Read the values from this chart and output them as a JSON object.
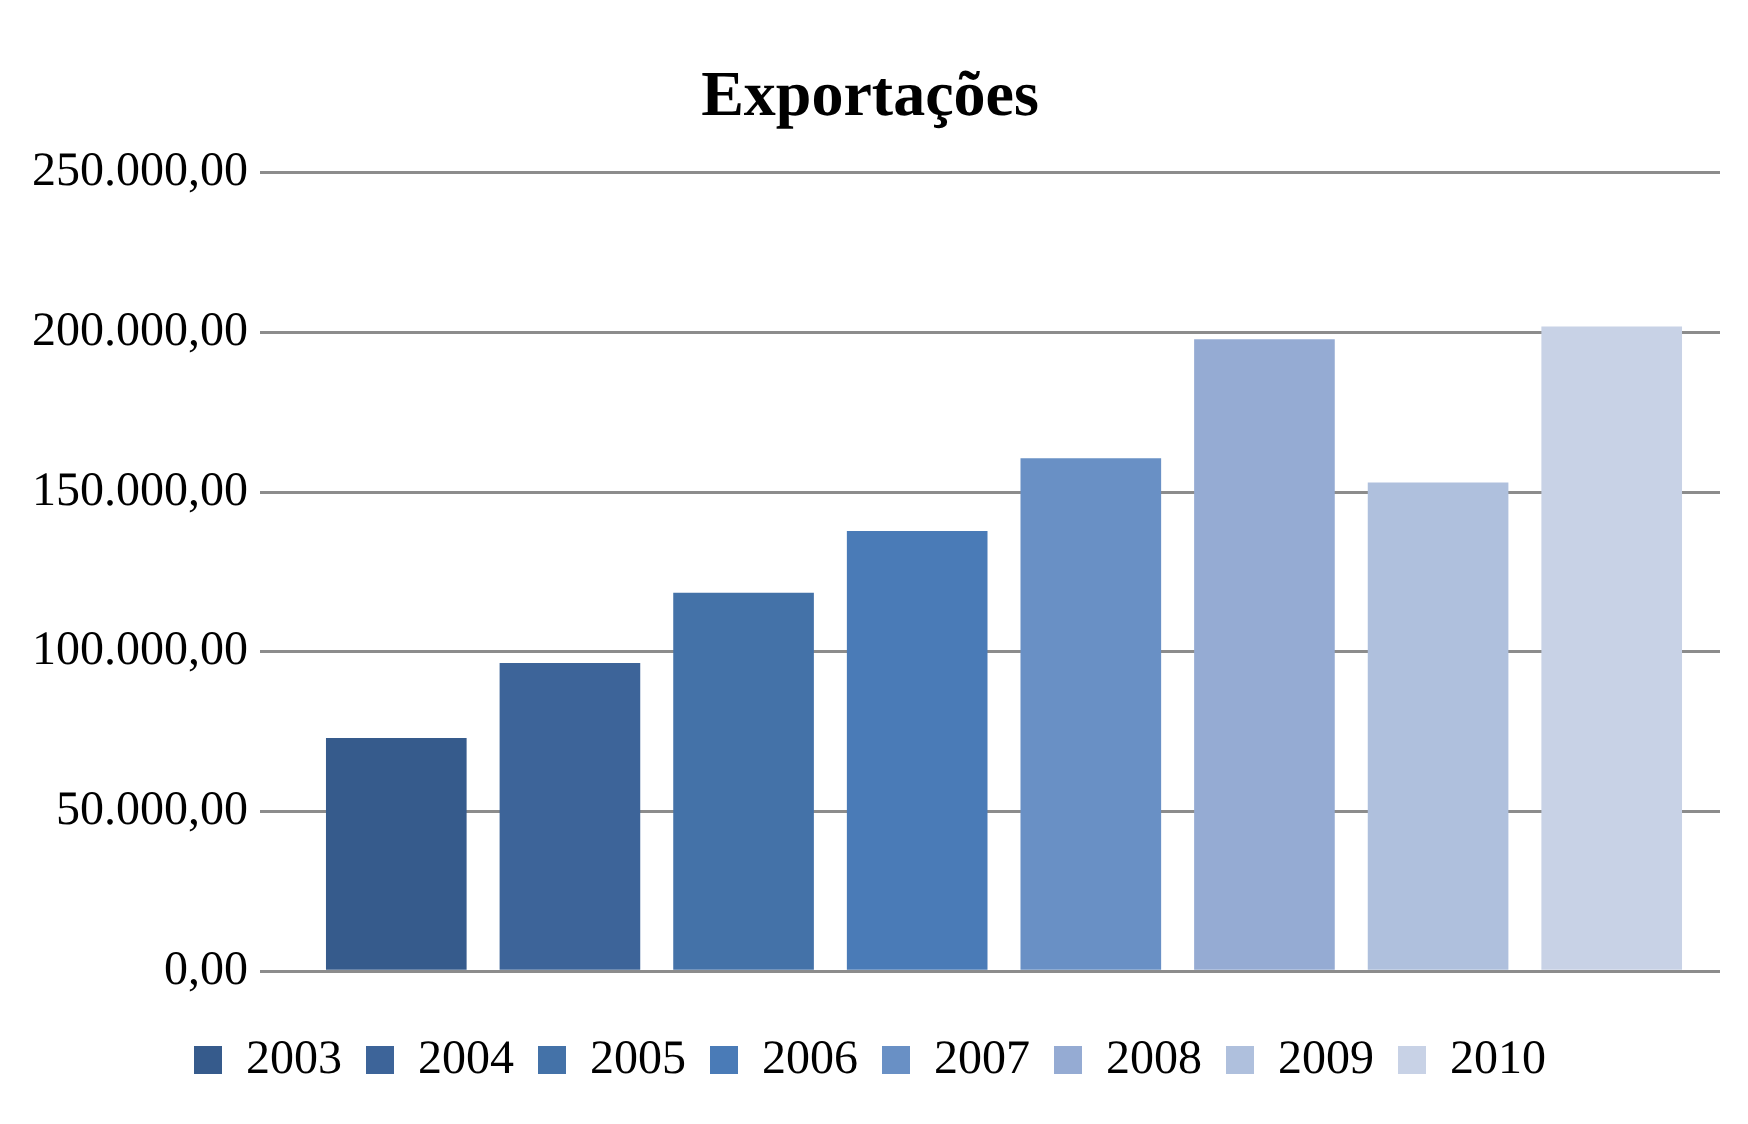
{
  "chart_data": {
    "type": "bar",
    "title": "Exportações",
    "categories": [
      null
    ],
    "series": [
      {
        "name": "2003",
        "color": "#365b8c",
        "values": [
          73000
        ]
      },
      {
        "name": "2004",
        "color": "#3d6499",
        "values": [
          96500
        ]
      },
      {
        "name": "2005",
        "color": "#4472a8",
        "values": [
          118500
        ]
      },
      {
        "name": "2006",
        "color": "#4a7bb7",
        "values": [
          137800
        ]
      },
      {
        "name": "2007",
        "color": "#6990c5",
        "values": [
          160600
        ]
      },
      {
        "name": "2008",
        "color": "#95abd3",
        "values": [
          197900
        ]
      },
      {
        "name": "2009",
        "color": "#afc0dd",
        "values": [
          153000
        ]
      },
      {
        "name": "2010",
        "color": "#c8d2e6",
        "values": [
          201900
        ]
      }
    ],
    "ylim": [
      0,
      250000
    ],
    "yticks": [
      {
        "value": 0,
        "label": "0,00"
      },
      {
        "value": 50000,
        "label": "50.000,00"
      },
      {
        "value": 100000,
        "label": "100.000,00"
      },
      {
        "value": 150000,
        "label": "150.000,00"
      },
      {
        "value": 200000,
        "label": "200.000,00"
      },
      {
        "value": 250000,
        "label": "250.000,00"
      }
    ],
    "grid": "y",
    "legend": "bottom"
  }
}
